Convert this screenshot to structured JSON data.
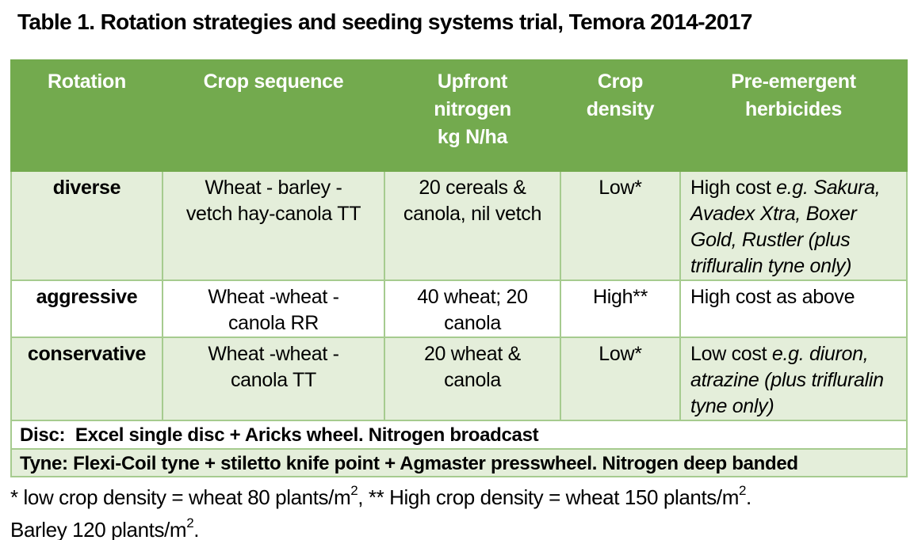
{
  "title": "Table 1. Rotation strategies and seeding systems trial, Temora 2014-2017",
  "colors": {
    "header_green": "#73AA4E",
    "row_green": "#E4EEDA",
    "border_green": "#A6CB8F",
    "row_white": "#FFFFFF",
    "header_text": "#FFFFFF",
    "text_black": "#000000"
  },
  "table": {
    "headers": [
      "Rotation",
      "Crop sequence",
      "Upfront\nnitrogen\nkg N/ha",
      "Crop\ndensity",
      "Pre-emergent\nherbicides"
    ],
    "rows": [
      {
        "rotation": "diverse",
        "crop_sequence": "Wheat - barley -\nvetch hay-canola TT",
        "upfront_nitrogen": "20 cereals &\ncanola, nil vetch",
        "crop_density": "Low*",
        "herbicides_normal": "High cost ",
        "herbicides_italic": "e.g. Sakura, Avadex Xtra, Boxer Gold, Rustler (plus trifluralin tyne only)"
      },
      {
        "rotation": "aggressive",
        "crop_sequence": "Wheat -wheat -\ncanola RR",
        "upfront_nitrogen": "40 wheat; 20\ncanola",
        "crop_density": "High**",
        "herbicides_normal": "High cost as above",
        "herbicides_italic": ""
      },
      {
        "rotation": "conservative",
        "crop_sequence": "Wheat -wheat -\ncanola TT",
        "upfront_nitrogen": "20 wheat &\ncanola",
        "crop_density": "Low*",
        "herbicides_normal": "Low cost ",
        "herbicides_italic": "e.g. diuron, atrazine (plus trifluralin tyne only)"
      }
    ],
    "footer_rows": [
      "Disc:  Excel single disc + Aricks wheel. Nitrogen broadcast",
      "Tyne: Flexi-Coil tyne + stiletto knife point + Agmaster presswheel. Nitrogen deep banded"
    ]
  },
  "footnote": {
    "line1": [
      "* low crop density = wheat 80 plants/m",
      "2",
      ", ** High crop density = wheat 150 plants/m",
      "2",
      "."
    ],
    "line2": [
      "Barley 120 plants/m",
      "2",
      "."
    ]
  }
}
